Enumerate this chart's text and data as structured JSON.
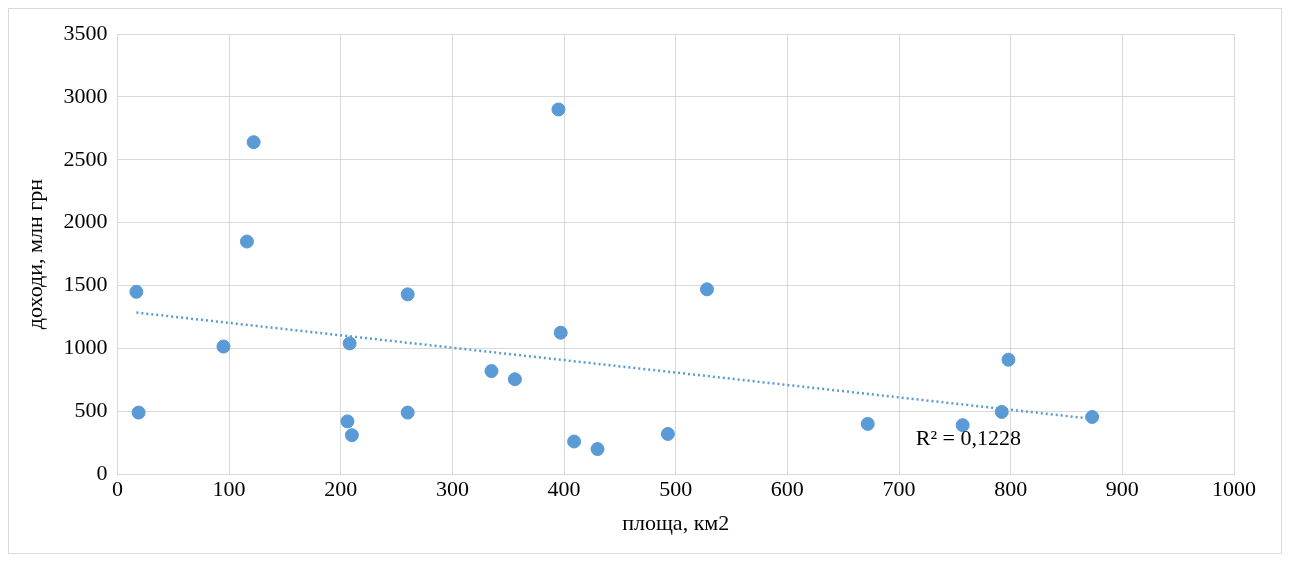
{
  "chart_data": {
    "type": "scatter",
    "xlabel": "площа, км2",
    "ylabel": "доходи, млн грн",
    "xlim": [
      0,
      1000
    ],
    "xticks": [
      0,
      100,
      200,
      300,
      400,
      500,
      600,
      700,
      800,
      900,
      1000
    ],
    "ylim": [
      0,
      3500
    ],
    "yticks": [
      0,
      500,
      1000,
      1500,
      2000,
      2500,
      3000,
      3500
    ],
    "grid": true,
    "legend": false,
    "marker": "circle",
    "series": [
      {
        "color": "#5b9bd5",
        "x": [
          17,
          19,
          95,
          116,
          122,
          206,
          208,
          210,
          260,
          260,
          335,
          356,
          395,
          397,
          409,
          430,
          493,
          528,
          672,
          757,
          792,
          798,
          873
        ],
        "values": [
          1450,
          490,
          1015,
          1850,
          2640,
          420,
          1040,
          310,
          1430,
          490,
          820,
          755,
          2900,
          1125,
          260,
          200,
          320,
          1470,
          400,
          390,
          495,
          910,
          455
        ]
      },
      {
        "type": "line",
        "color": "#5b9bd5",
        "line_style": "dotted",
        "marker": "none",
        "x": [
          17,
          873
        ],
        "values": [
          1285,
          440
        ]
      }
    ],
    "annotations": [
      "R² = 0,1228"
    ]
  }
}
